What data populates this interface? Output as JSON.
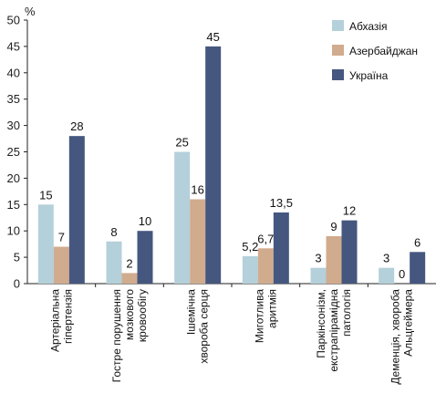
{
  "chart_data": {
    "type": "bar",
    "unit": "%",
    "ylim": [
      0,
      50
    ],
    "yticks": [
      0,
      5,
      10,
      15,
      20,
      25,
      30,
      35,
      40,
      45,
      50
    ],
    "grid": false,
    "legend_position": "top-right",
    "categories": [
      [
        "Артеріальна",
        "гіпертензія"
      ],
      [
        "Гостре порушення",
        "мозкового",
        "кровообігу"
      ],
      [
        "Ішемічна",
        "хвороба серця"
      ],
      [
        "Миготлива",
        "аритмія"
      ],
      [
        "Паркінсонізм,",
        "екстрапірамідна",
        "патологія"
      ],
      [
        "Деменція, хвороба",
        "Альцгеймера"
      ]
    ],
    "series": [
      {
        "name": "Абхазія",
        "color": "#b4d0da",
        "values": [
          15,
          8,
          25,
          5.2,
          3,
          3
        ],
        "labels": [
          "15",
          "8",
          "25",
          "5,2",
          "3",
          "3"
        ]
      },
      {
        "name": "Азербайджан",
        "color": "#d1ab8e",
        "values": [
          7,
          2,
          16,
          6.7,
          9,
          0
        ],
        "labels": [
          "7",
          "2",
          "16",
          "6,7",
          "9",
          "0"
        ]
      },
      {
        "name": "Україна",
        "color": "#45577f",
        "values": [
          28,
          10,
          45,
          13.5,
          12,
          6
        ],
        "labels": [
          "28",
          "10",
          "45",
          "13,5",
          "12",
          "6"
        ]
      }
    ]
  }
}
